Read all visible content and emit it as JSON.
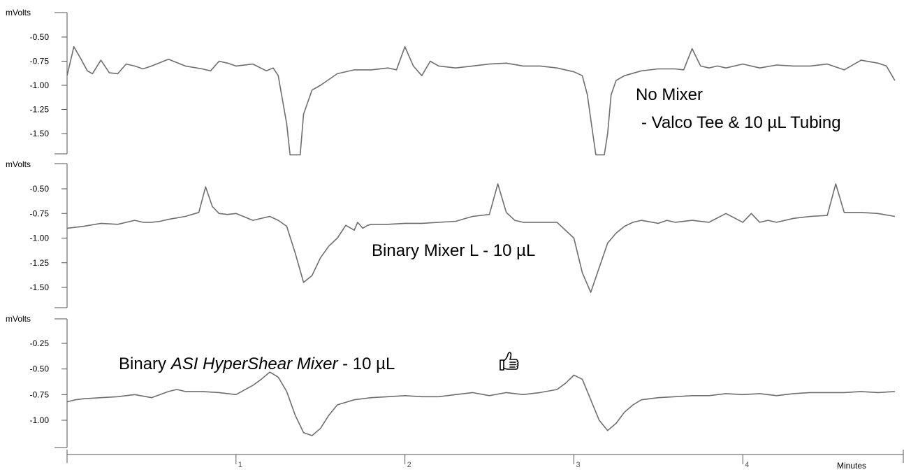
{
  "chart_data": [
    {
      "type": "line",
      "y_unit_label": "mVolts",
      "annotation_lines": [
        "No Mixer",
        "- Valco Tee & 10 µL Tubing"
      ],
      "yticks": [
        "-0.50",
        "-0.75",
        "-1.00",
        "-1.25",
        "-1.50"
      ],
      "ylim": [
        -1.72,
        -0.25
      ],
      "x": [
        0.0,
        0.04,
        0.08,
        0.12,
        0.15,
        0.2,
        0.25,
        0.3,
        0.35,
        0.4,
        0.45,
        0.5,
        0.6,
        0.7,
        0.8,
        0.85,
        0.9,
        0.95,
        1.0,
        1.1,
        1.18,
        1.22,
        1.25,
        1.27,
        1.3,
        1.32,
        1.35,
        1.38,
        1.4,
        1.45,
        1.5,
        1.6,
        1.7,
        1.8,
        1.9,
        1.95,
        2.0,
        2.05,
        2.1,
        2.15,
        2.2,
        2.3,
        2.4,
        2.5,
        2.6,
        2.7,
        2.8,
        2.9,
        3.0,
        3.05,
        3.08,
        3.1,
        3.13,
        3.15,
        3.18,
        3.2,
        3.22,
        3.25,
        3.3,
        3.4,
        3.5,
        3.6,
        3.65,
        3.7,
        3.75,
        3.8,
        3.85,
        3.9,
        4.0,
        4.1,
        4.2,
        4.3,
        4.4,
        4.5,
        4.6,
        4.7,
        4.8,
        4.85,
        4.9
      ],
      "y": [
        -0.9,
        -0.6,
        -0.72,
        -0.85,
        -0.88,
        -0.74,
        -0.87,
        -0.88,
        -0.78,
        -0.8,
        -0.83,
        -0.8,
        -0.73,
        -0.8,
        -0.83,
        -0.85,
        -0.75,
        -0.77,
        -0.8,
        -0.78,
        -0.85,
        -0.82,
        -0.9,
        -1.1,
        -1.4,
        -1.72,
        -1.72,
        -1.72,
        -1.3,
        -1.05,
        -1.0,
        -0.88,
        -0.84,
        -0.84,
        -0.82,
        -0.84,
        -0.6,
        -0.8,
        -0.9,
        -0.75,
        -0.8,
        -0.82,
        -0.8,
        -0.78,
        -0.77,
        -0.8,
        -0.8,
        -0.82,
        -0.86,
        -0.9,
        -1.1,
        -1.35,
        -1.72,
        -1.72,
        -1.72,
        -1.5,
        -1.1,
        -0.95,
        -0.9,
        -0.85,
        -0.83,
        -0.83,
        -0.84,
        -0.62,
        -0.8,
        -0.82,
        -0.8,
        -0.82,
        -0.78,
        -0.82,
        -0.79,
        -0.8,
        -0.8,
        -0.78,
        -0.84,
        -0.74,
        -0.77,
        -0.8,
        -0.95
      ]
    },
    {
      "type": "line",
      "y_unit_label": "mVolts",
      "annotation_lines": [
        "Binary Mixer L - 10 µL"
      ],
      "yticks": [
        "-0.50",
        "-0.75",
        "-1.00",
        "-1.25",
        "-1.50"
      ],
      "ylim": [
        -1.72,
        -0.25
      ],
      "x": [
        0.0,
        0.1,
        0.2,
        0.3,
        0.4,
        0.45,
        0.5,
        0.55,
        0.6,
        0.7,
        0.78,
        0.82,
        0.86,
        0.9,
        0.95,
        1.0,
        1.1,
        1.2,
        1.25,
        1.3,
        1.35,
        1.4,
        1.45,
        1.5,
        1.55,
        1.6,
        1.65,
        1.7,
        1.72,
        1.75,
        1.78,
        1.8,
        1.9,
        2.0,
        2.1,
        2.2,
        2.3,
        2.4,
        2.5,
        2.55,
        2.6,
        2.65,
        2.7,
        2.8,
        2.9,
        3.0,
        3.05,
        3.1,
        3.15,
        3.2,
        3.25,
        3.3,
        3.35,
        3.4,
        3.5,
        3.55,
        3.6,
        3.7,
        3.8,
        3.9,
        4.0,
        4.05,
        4.1,
        4.15,
        4.2,
        4.3,
        4.4,
        4.5,
        4.55,
        4.6,
        4.65,
        4.7,
        4.8,
        4.9
      ],
      "y": [
        -0.9,
        -0.88,
        -0.85,
        -0.86,
        -0.82,
        -0.84,
        -0.84,
        -0.83,
        -0.81,
        -0.78,
        -0.74,
        -0.48,
        -0.68,
        -0.75,
        -0.76,
        -0.75,
        -0.82,
        -0.78,
        -0.82,
        -0.88,
        -1.15,
        -1.45,
        -1.38,
        -1.2,
        -1.08,
        -1.0,
        -0.87,
        -0.92,
        -0.84,
        -0.9,
        -0.87,
        -0.86,
        -0.86,
        -0.85,
        -0.85,
        -0.84,
        -0.83,
        -0.78,
        -0.76,
        -0.45,
        -0.74,
        -0.82,
        -0.84,
        -0.84,
        -0.84,
        -1.0,
        -1.35,
        -1.55,
        -1.3,
        -1.05,
        -0.95,
        -0.88,
        -0.84,
        -0.82,
        -0.85,
        -0.82,
        -0.84,
        -0.82,
        -0.84,
        -0.75,
        -0.84,
        -0.75,
        -0.84,
        -0.82,
        -0.84,
        -0.8,
        -0.78,
        -0.77,
        -0.45,
        -0.74,
        -0.74,
        -0.74,
        -0.75,
        -0.78
      ]
    },
    {
      "type": "line",
      "y_unit_label": "mVolts",
      "annotation_prefix": "Binary ",
      "annotation_italic": "ASI HyperShear Mixer",
      "annotation_suffix": " - 10 µL",
      "annotation_icon": "thumbs-up-icon",
      "yticks": [
        "-0.25",
        "-0.50",
        "-0.75",
        "-1.00"
      ],
      "ylim": [
        -1.27,
        -0.05
      ],
      "x": [
        0.0,
        0.05,
        0.1,
        0.2,
        0.3,
        0.4,
        0.5,
        0.6,
        0.65,
        0.7,
        0.8,
        0.9,
        1.0,
        1.1,
        1.15,
        1.2,
        1.25,
        1.3,
        1.35,
        1.4,
        1.45,
        1.5,
        1.55,
        1.6,
        1.7,
        1.8,
        1.9,
        2.0,
        2.1,
        2.2,
        2.3,
        2.4,
        2.5,
        2.6,
        2.7,
        2.8,
        2.9,
        2.95,
        3.0,
        3.05,
        3.1,
        3.15,
        3.2,
        3.25,
        3.3,
        3.35,
        3.4,
        3.5,
        3.6,
        3.7,
        3.8,
        3.9,
        4.0,
        4.1,
        4.2,
        4.3,
        4.4,
        4.5,
        4.6,
        4.7,
        4.8,
        4.9
      ],
      "y": [
        -0.82,
        -0.8,
        -0.79,
        -0.78,
        -0.77,
        -0.75,
        -0.78,
        -0.72,
        -0.7,
        -0.72,
        -0.72,
        -0.73,
        -0.75,
        -0.66,
        -0.6,
        -0.53,
        -0.58,
        -0.72,
        -0.95,
        -1.12,
        -1.15,
        -1.08,
        -0.95,
        -0.85,
        -0.8,
        -0.78,
        -0.77,
        -0.76,
        -0.77,
        -0.77,
        -0.75,
        -0.73,
        -0.76,
        -0.73,
        -0.75,
        -0.73,
        -0.7,
        -0.64,
        -0.56,
        -0.6,
        -0.8,
        -1.0,
        -1.1,
        -1.03,
        -0.92,
        -0.85,
        -0.8,
        -0.78,
        -0.77,
        -0.76,
        -0.76,
        -0.74,
        -0.75,
        -0.74,
        -0.76,
        -0.74,
        -0.73,
        -0.73,
        -0.73,
        -0.72,
        -0.73,
        -0.72
      ]
    }
  ],
  "x_axis": {
    "tick_labels": [
      "1",
      "2",
      "3",
      "4"
    ],
    "unit_label": "Minutes",
    "xlim": [
      0,
      4.95
    ]
  },
  "colors": {
    "trace": "#6e6e6e",
    "axis": "#555555"
  }
}
